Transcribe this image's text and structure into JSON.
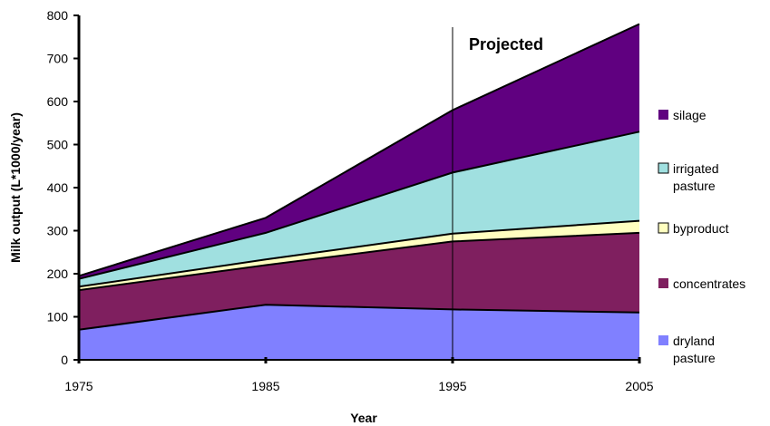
{
  "chart_data": {
    "type": "area",
    "stacked": true,
    "title": "",
    "xlabel": "Year",
    "ylabel": "Milk output (L*1000/year)",
    "x": [
      1975,
      1985,
      1995,
      2005
    ],
    "x_ticks": [
      "1975",
      "1985",
      "1995",
      "2005"
    ],
    "ylim": [
      0,
      800
    ],
    "y_ticks": [
      "0",
      "100",
      "200",
      "300",
      "400",
      "500",
      "600",
      "700",
      "800"
    ],
    "grid": false,
    "legend_position": "right",
    "series": [
      {
        "name": "dryland pasture",
        "values": [
          70,
          128,
          117,
          110
        ],
        "color": "#8080ff"
      },
      {
        "name": "concentrates",
        "values": [
          92,
          92,
          158,
          185
        ],
        "color": "#7f1f5f"
      },
      {
        "name": "byproduct",
        "values": [
          8,
          13,
          18,
          28
        ],
        "color": "#ffffc0"
      },
      {
        "name": "irrigated pasture",
        "values": [
          18,
          62,
          142,
          207
        ],
        "color": "#a0e0e0"
      },
      {
        "name": "silage",
        "values": [
          7,
          35,
          145,
          250
        ],
        "color": "#600080"
      }
    ],
    "annotation": {
      "label": "Projected",
      "x": 1995
    }
  }
}
